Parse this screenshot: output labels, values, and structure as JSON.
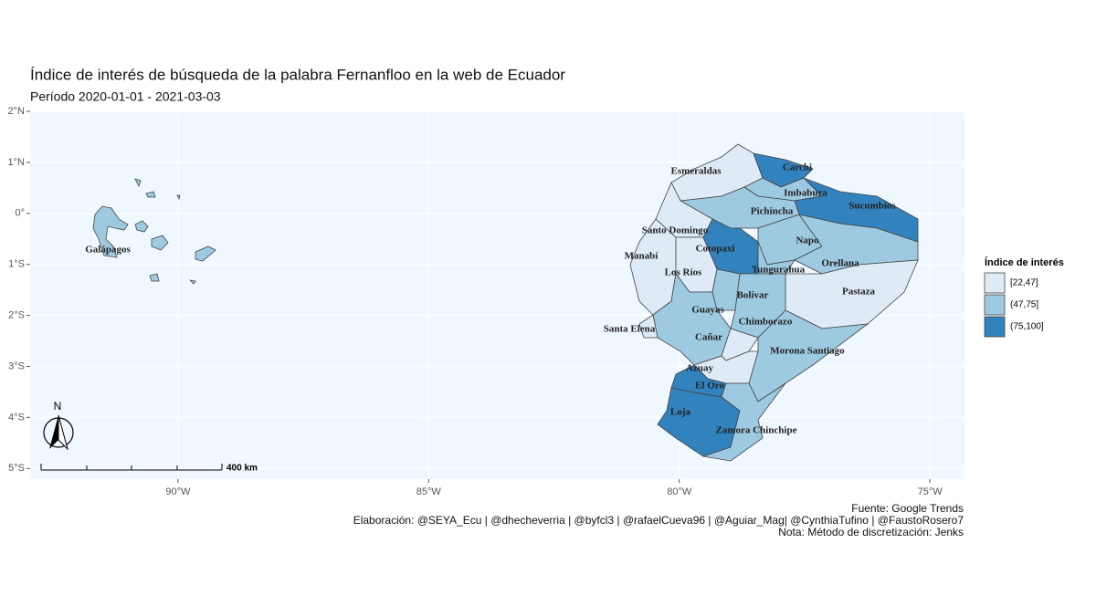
{
  "title": "Índice de interés de búsqueda de la palabra Fernanfloo en la web de Ecuador",
  "subtitle": "Período 2020-01-01 - 2021-03-03",
  "xlim": [
    -92.95,
    -74.31
  ],
  "ylim": [
    -5.21,
    2.0
  ],
  "xticks": [
    {
      "value": -90,
      "label": "90°W"
    },
    {
      "value": -85,
      "label": "85°W"
    },
    {
      "value": -80,
      "label": "80°W"
    },
    {
      "value": -75,
      "label": "75°W"
    }
  ],
  "yticks": [
    {
      "value": 2,
      "label": "2°N"
    },
    {
      "value": 1,
      "label": "1°N"
    },
    {
      "value": 0,
      "label": "0°"
    },
    {
      "value": -1,
      "label": "1°S"
    },
    {
      "value": -2,
      "label": "2°S"
    },
    {
      "value": -3,
      "label": "3°S"
    },
    {
      "value": -4,
      "label": "4°S"
    },
    {
      "value": -5,
      "label": "5°S"
    }
  ],
  "grid": true,
  "legend": {
    "title": "Índice de interés",
    "items": [
      {
        "label": "[22,47]",
        "color": "#deebf7"
      },
      {
        "label": "(47,75]",
        "color": "#9ecae1"
      },
      {
        "label": "(75,100]",
        "color": "#3182bd"
      }
    ]
  },
  "provinces": [
    {
      "name": "Esmeraldas",
      "color": "#deebf7"
    },
    {
      "name": "Carchi",
      "color": "#3182bd"
    },
    {
      "name": "Imbabura",
      "color": "#9ecae1"
    },
    {
      "name": "Sucumbíos",
      "color": "#3182bd"
    },
    {
      "name": "Pichincha",
      "color": "#9ecae1"
    },
    {
      "name": "Santo Domingo",
      "color": "#deebf7"
    },
    {
      "name": "Manabí",
      "color": "#deebf7"
    },
    {
      "name": "Los Ríos",
      "color": "#deebf7"
    },
    {
      "name": "Cotopaxi",
      "color": "#3182bd"
    },
    {
      "name": "Napo",
      "color": "#9ecae1"
    },
    {
      "name": "Orellana",
      "color": "#9ecae1"
    },
    {
      "name": "Tungurahua",
      "color": "#9ecae1"
    },
    {
      "name": "Pastaza",
      "color": "#deebf7"
    },
    {
      "name": "Bolívar",
      "color": "#9ecae1"
    },
    {
      "name": "Guayas",
      "color": "#9ecae1"
    },
    {
      "name": "Santa Elena",
      "color": "#deebf7"
    },
    {
      "name": "Chimborazo",
      "color": "#9ecae1"
    },
    {
      "name": "Cañar",
      "color": "#deebf7"
    },
    {
      "name": "Morona Santiago",
      "color": "#9ecae1"
    },
    {
      "name": "Azuay",
      "color": "#deebf7"
    },
    {
      "name": "El Oro",
      "color": "#3182bd"
    },
    {
      "name": "Loja",
      "color": "#3182bd"
    },
    {
      "name": "Zamora Chinchipe",
      "color": "#9ecae1"
    },
    {
      "name": "Galápagos",
      "color": "#9ecae1"
    }
  ],
  "north_label": "N",
  "scale_label": "400 km",
  "caption": [
    "Fuente: Google Trends",
    "Elaboración:  @SEYA_Ecu | @dhecheverria | @byfcl3 | @rafaelCueva96 | @Aguiar_Mag| @CynthiaTufino | @FaustoRosero7",
    "Nota: Método de discretización: Jenks"
  ]
}
